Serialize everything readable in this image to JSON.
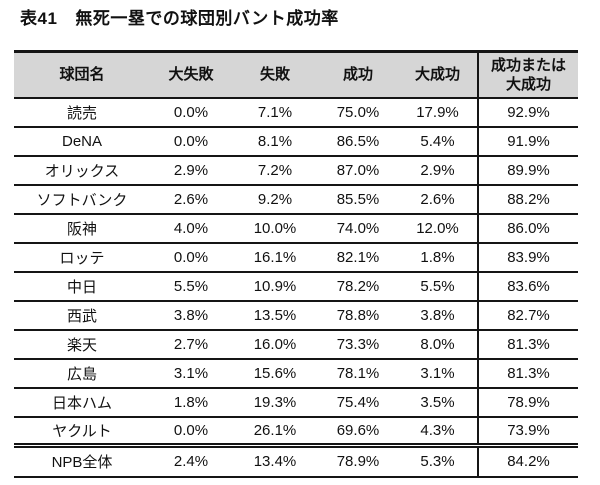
{
  "page": {
    "background_color": "#ffffff",
    "text_color": "#111111",
    "header_bg_color": "#d6d6d6",
    "rule_color": "#151515"
  },
  "title": {
    "prefix": "表41",
    "text": "無死一塁での球団別バント成功率"
  },
  "table": {
    "columns": [
      "球団名",
      "大失敗",
      "失敗",
      "成功",
      "大成功",
      "成功または\n大成功"
    ],
    "rows": [
      [
        "読売",
        "0.0%",
        "7.1%",
        "75.0%",
        "17.9%",
        "92.9%"
      ],
      [
        "DeNA",
        "0.0%",
        "8.1%",
        "86.5%",
        "5.4%",
        "91.9%"
      ],
      [
        "オリックス",
        "2.9%",
        "7.2%",
        "87.0%",
        "2.9%",
        "89.9%"
      ],
      [
        "ソフトバンク",
        "2.6%",
        "9.2%",
        "85.5%",
        "2.6%",
        "88.2%"
      ],
      [
        "阪神",
        "4.0%",
        "10.0%",
        "74.0%",
        "12.0%",
        "86.0%"
      ],
      [
        "ロッテ",
        "0.0%",
        "16.1%",
        "82.1%",
        "1.8%",
        "83.9%"
      ],
      [
        "中日",
        "5.5%",
        "10.9%",
        "78.2%",
        "5.5%",
        "83.6%"
      ],
      [
        "西武",
        "3.8%",
        "13.5%",
        "78.8%",
        "3.8%",
        "82.7%"
      ],
      [
        "楽天",
        "2.7%",
        "16.0%",
        "73.3%",
        "8.0%",
        "81.3%"
      ],
      [
        "広島",
        "3.1%",
        "15.6%",
        "78.1%",
        "3.1%",
        "81.3%"
      ],
      [
        "日本ハム",
        "1.8%",
        "19.3%",
        "75.4%",
        "3.5%",
        "78.9%"
      ],
      [
        "ヤクルト",
        "0.0%",
        "26.1%",
        "69.6%",
        "4.3%",
        "73.9%"
      ]
    ],
    "total_row": [
      "NPB全体",
      "2.4%",
      "13.4%",
      "78.9%",
      "5.3%",
      "84.2%"
    ]
  }
}
